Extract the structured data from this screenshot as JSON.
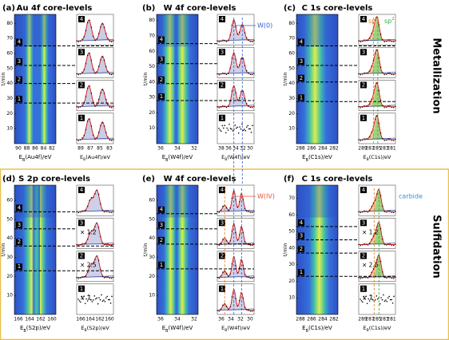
{
  "sections": [
    {
      "label": "Metallization",
      "panels": [
        {
          "tag": "(a)",
          "title": "Au 4f core-levels",
          "y_label": "t/min",
          "map_yticks": [
            "10",
            "20",
            "30",
            "40",
            "50",
            "60",
            "70",
            "80"
          ],
          "map_xticks": [
            "90",
            "88",
            "86",
            "84",
            "82"
          ],
          "map_xlabel": {
            "e": "E",
            "sub": "B",
            "rest": "(Au4f)/eV"
          },
          "spec_xticks": [
            "89",
            "87",
            "85",
            "83"
          ],
          "spec_xlabel": {
            "e": "E",
            "sub": "B",
            "rest": "(Au4f)/eV"
          },
          "levels": [
            {
              "label": "4"
            },
            {
              "label": "3"
            },
            {
              "label": "2"
            },
            {
              "label": "1"
            }
          ]
        },
        {
          "tag": "(b)",
          "title": "W 4f core-levels",
          "y_label": "t/min",
          "map_yticks": [
            "10",
            "20",
            "30",
            "40",
            "50",
            "60",
            "70",
            "80"
          ],
          "map_xticks": [
            "36",
            "34",
            "32"
          ],
          "map_xlabel": {
            "e": "E",
            "sub": "B",
            "rest": "(W4f)/eV"
          },
          "spec_xticks": [
            "38",
            "36",
            "34",
            "32",
            "30"
          ],
          "spec_xlabel": {
            "e": "E",
            "sub": "B",
            "rest": "(W4f)/eV"
          },
          "levels": [
            {
              "label": "4"
            },
            {
              "label": "3"
            },
            {
              "label": "2"
            },
            {
              "label": "1"
            }
          ],
          "annotation": "W(0)"
        },
        {
          "tag": "(c)",
          "title": "C 1s core-levels",
          "y_label": "t/min",
          "map_yticks": [
            "10",
            "20",
            "30",
            "40",
            "50",
            "60",
            "70",
            "80"
          ],
          "map_xticks": [
            "288",
            "286",
            "284",
            "282"
          ],
          "map_xlabel": {
            "e": "E",
            "sub": "B",
            "rest": "(C1s)/eV"
          },
          "spec_xticks": [
            "289",
            "287",
            "285",
            "283",
            "281"
          ],
          "spec_xlabel": {
            "e": "E",
            "sub": "B",
            "rest": "(C1s)/eV"
          },
          "levels": [
            {
              "label": "4"
            },
            {
              "label": "3"
            },
            {
              "label": "2"
            },
            {
              "label": "1"
            }
          ],
          "hybrid": [
            {
              "base": "sp",
              "sup": "3"
            },
            {
              "base": "sp",
              "sup": "2"
            }
          ]
        }
      ]
    },
    {
      "label": "Sulfidation",
      "panels": [
        {
          "tag": "(d)",
          "title": "S 2p core-levels",
          "y_label": "t/min",
          "map_yticks": [
            "10",
            "20",
            "30",
            "40",
            "50",
            "60"
          ],
          "map_xticks": [
            "166",
            "164",
            "162",
            "160"
          ],
          "map_xlabel": {
            "e": "E",
            "sub": "B",
            "rest": "(S2p)/eV"
          },
          "spec_xticks": [
            "166",
            "164",
            "162",
            "160"
          ],
          "spec_xlabel": {
            "e": "E",
            "sub": "B",
            "rest": "(S2p)/eV"
          },
          "levels": [
            {
              "label": "4"
            },
            {
              "label": "3",
              "factor": "× 1.2"
            },
            {
              "label": "2",
              "factor": "× 2.5"
            },
            {
              "label": "1",
              "factor": "× 7"
            }
          ]
        },
        {
          "tag": "(e)",
          "title": "W 4f core-levels",
          "y_label": "t/min",
          "map_yticks": [
            "10",
            "20",
            "30",
            "40",
            "50",
            "60"
          ],
          "map_xticks": [
            "36",
            "34",
            "32"
          ],
          "map_xlabel": {
            "e": "E",
            "sub": "B",
            "rest": "(W4f)/eV"
          },
          "spec_xticks": [
            "36",
            "34",
            "32",
            "30"
          ],
          "spec_xlabel": {
            "e": "E",
            "sub": "B",
            "rest": "(W4f)/eV"
          },
          "levels": [
            {
              "label": "4"
            },
            {
              "label": "3"
            },
            {
              "label": "2"
            },
            {
              "label": "1"
            }
          ],
          "annotation": "W(IV)"
        },
        {
          "tag": "(f)",
          "title": "C 1s core-levels",
          "y_label": "t/min",
          "map_yticks": [
            "10",
            "20",
            "30",
            "40",
            "50",
            "60",
            "70"
          ],
          "map_xticks": [
            "288",
            "286",
            "284",
            "282"
          ],
          "map_xlabel": {
            "e": "E",
            "sub": "B",
            "rest": "(C1s)/eV"
          },
          "spec_xticks": [
            "289",
            "287",
            "285",
            "283",
            "281"
          ],
          "spec_xlabel": {
            "e": "E",
            "sub": "B",
            "rest": "(C1s)/eV"
          },
          "levels": [
            {
              "label": "4"
            },
            {
              "label": "3",
              "factor": "× 1.2"
            },
            {
              "label": "2",
              "factor": "× 2.5"
            },
            {
              "label": "1",
              "factor": "× 7"
            }
          ],
          "annotation": "carbide"
        }
      ]
    }
  ]
}
